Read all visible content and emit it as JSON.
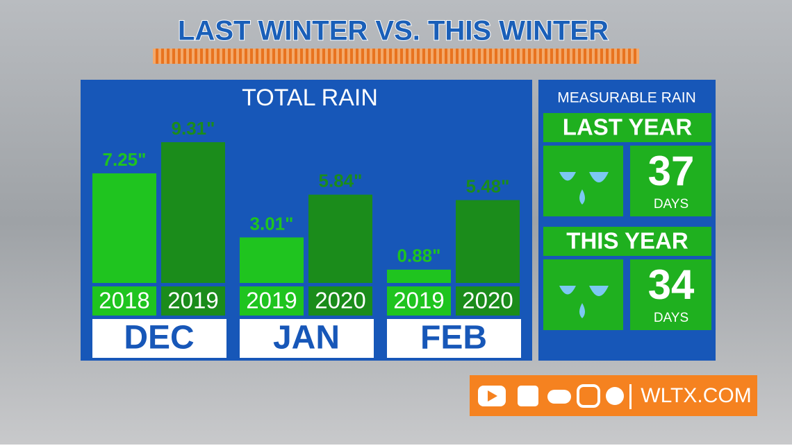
{
  "title": "LAST WINTER VS. THIS WINTER",
  "chart_data": {
    "type": "bar",
    "title": "TOTAL RAIN",
    "colors": [
      "#1fc41f",
      "#1b8c1b"
    ],
    "groups": [
      {
        "label": "DEC",
        "bars": [
          {
            "label": "2018",
            "value": 7.25,
            "value_label": "7.25\""
          },
          {
            "label": "2019",
            "value": 9.31,
            "value_label": "9.31\""
          }
        ]
      },
      {
        "label": "JAN",
        "bars": [
          {
            "label": "2019",
            "value": 3.01,
            "value_label": "3.01\""
          },
          {
            "label": "2020",
            "value": 5.84,
            "value_label": "5.84\""
          }
        ]
      },
      {
        "label": "FEB",
        "bars": [
          {
            "label": "2019",
            "value": 0.88,
            "value_label": "0.88\""
          },
          {
            "label": "2020",
            "value": 5.48,
            "value_label": "5.48\""
          }
        ]
      }
    ]
  },
  "side_panel": {
    "title": "MEASURABLE RAIN",
    "items": [
      {
        "label": "LAST YEAR",
        "number": "37",
        "unit": "DAYS"
      },
      {
        "label": "THIS YEAR",
        "number": "34",
        "unit": "DAYS"
      }
    ]
  },
  "footer": {
    "site": "WLTX.COM"
  }
}
